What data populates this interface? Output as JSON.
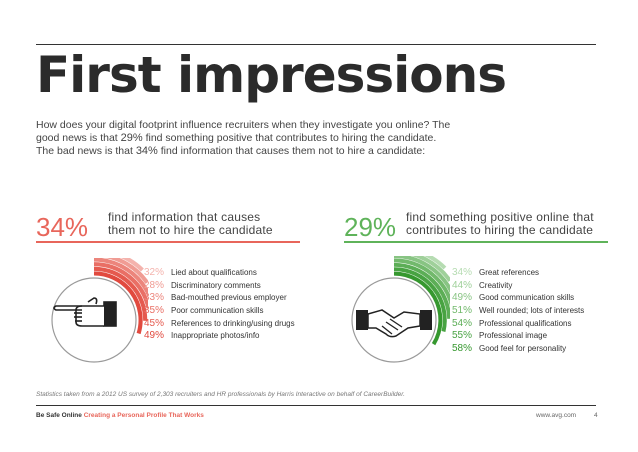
{
  "title": "First impressions",
  "intro": {
    "line1": "How does your digital footprint influence recruiters when they investigate you online? The",
    "line2a": "good news is that ",
    "line2pct": "29%",
    "line2b": " find something positive that contributes to hiring the candidate.",
    "line3a": "The bad news is that ",
    "line3pct": "34%",
    "line3b": " find information that causes them not to hire a candidate:"
  },
  "negative": {
    "percent": "34%",
    "heading_line1": "find information that causes",
    "heading_line2": "them not to hire the candidate",
    "color": "#e8665b",
    "icon": "pointing-hand-icon",
    "items": [
      {
        "pct": "32%",
        "label": "Lied about qualifications",
        "color": "#f4b3ad"
      },
      {
        "pct": "28%",
        "label": "Discriminatory comments",
        "color": "#f09c94"
      },
      {
        "pct": "33%",
        "label": "Bad-mouthed previous employer",
        "color": "#ec857c"
      },
      {
        "pct": "35%",
        "label": "Poor communication skills",
        "color": "#e96f65"
      },
      {
        "pct": "45%",
        "label": "References to drinking/using drugs",
        "color": "#e55a4f"
      },
      {
        "pct": "49%",
        "label": "Inappropriate photos/info",
        "color": "#e14a3f"
      }
    ]
  },
  "positive": {
    "percent": "29%",
    "heading_line1": "find something positive online that",
    "heading_line2": "contributes to hiring the candidate",
    "color": "#5fb35a",
    "icon": "handshake-icon",
    "items": [
      {
        "pct": "34%",
        "label": "Great references",
        "color": "#b6dcb2"
      },
      {
        "pct": "44%",
        "label": "Creativity",
        "color": "#9fd09a"
      },
      {
        "pct": "49%",
        "label": "Good communication skills",
        "color": "#88c483"
      },
      {
        "pct": "51%",
        "label": "Well rounded; lots of interests",
        "color": "#72b96c"
      },
      {
        "pct": "54%",
        "label": "Professional qualifications",
        "color": "#5cae56"
      },
      {
        "pct": "55%",
        "label": "Professional image",
        "color": "#48a342"
      },
      {
        "pct": "58%",
        "label": "Good feel for personality",
        "color": "#36982f"
      }
    ]
  },
  "note": "Statistics taken from a 2012 US survey of 2,303 recruiters and HR professionals by Harris Interactive on behalf of CareerBuilder.",
  "footer": {
    "brand": "Be Safe Online",
    "subtitle": "Creating a Personal Profile That Works",
    "subtitle_color": "#e8665b",
    "url": "www.avg.com",
    "page": "4"
  }
}
